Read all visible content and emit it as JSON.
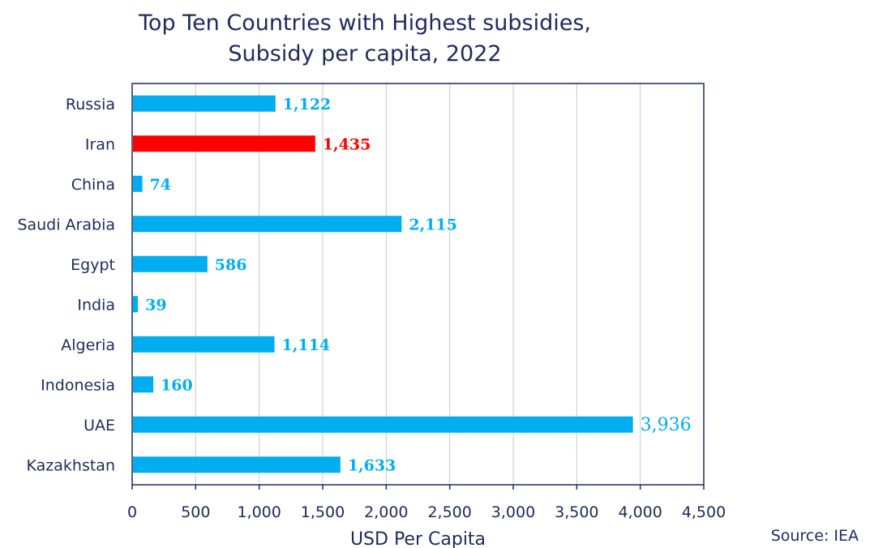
{
  "chart_data": {
    "type": "bar",
    "orientation": "horizontal",
    "title_lines": [
      "Top Ten Countries with Highest subsidies,",
      "Subsidy per capita, 2022"
    ],
    "xlabel": "USD Per Capita",
    "ylabel": "",
    "categories": [
      "Russia",
      "Iran",
      "China",
      "Saudi Arabia",
      "Egypt",
      "India",
      "Algeria",
      "Indonesia",
      "UAE",
      "Kazakhstan"
    ],
    "values": [
      1122,
      1435,
      74,
      2115,
      586,
      39,
      1114,
      160,
      3936,
      1633
    ],
    "data_labels": [
      "1,122",
      "1,435",
      "74",
      "2,115",
      "586",
      "39",
      "1,114",
      "160",
      "3,936",
      "1,633"
    ],
    "highlight_category": "Iran",
    "xlim": [
      0,
      4500
    ],
    "x_ticks": [
      0,
      500,
      1000,
      1500,
      2000,
      2500,
      3000,
      3500,
      4000,
      4500
    ],
    "x_tick_labels": [
      "0",
      "500",
      "1,000",
      "1,500",
      "2,000",
      "2,500",
      "3,000",
      "3,500",
      "4,000",
      "4,500"
    ],
    "grid": "vertical",
    "legend": "none",
    "colors": {
      "bar": "#00aeef",
      "highlight": "#ff0000",
      "text": "#1f2a5a",
      "grid": "#c8c8c8",
      "axis": "#1f2a5a"
    }
  },
  "source_note": "Source: IEA"
}
